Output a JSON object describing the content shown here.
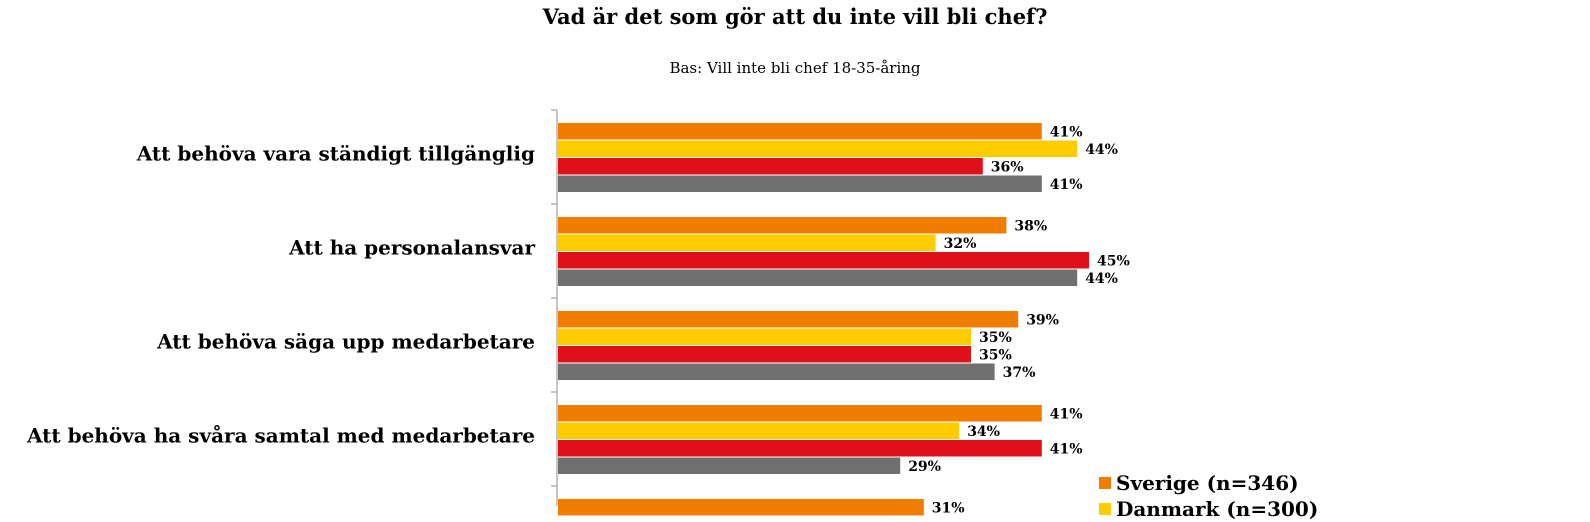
{
  "chart_data": {
    "type": "bar",
    "orientation": "horizontal",
    "title": "Vad är det som gör att du inte vill bli chef?",
    "subtitle": "Bas: Vill inte bli chef 18-35-åring",
    "categories": [
      "Att behöva vara ständigt tillgänglig",
      "Att ha personalansvar",
      "Att behöva säga upp medarbetare",
      "Att behöva ha svåra samtal med medarbetare",
      ""
    ],
    "series": [
      {
        "name": "Sverige (n=346)",
        "color": "#F07D00",
        "values": [
          41,
          38,
          39,
          41,
          31
        ]
      },
      {
        "name": "Danmark (n=300)",
        "color": "#FFCC00",
        "values": [
          44,
          32,
          35,
          34,
          null
        ]
      },
      {
        "name": "",
        "color": "#E0101A",
        "values": [
          36,
          45,
          35,
          41,
          null
        ]
      },
      {
        "name": "",
        "color": "#6F6F6F",
        "values": [
          41,
          44,
          37,
          29,
          null
        ]
      }
    ],
    "value_suffix": "%",
    "xlim": [
      0,
      100
    ],
    "grid": false,
    "legend_position": "bottom-right"
  }
}
